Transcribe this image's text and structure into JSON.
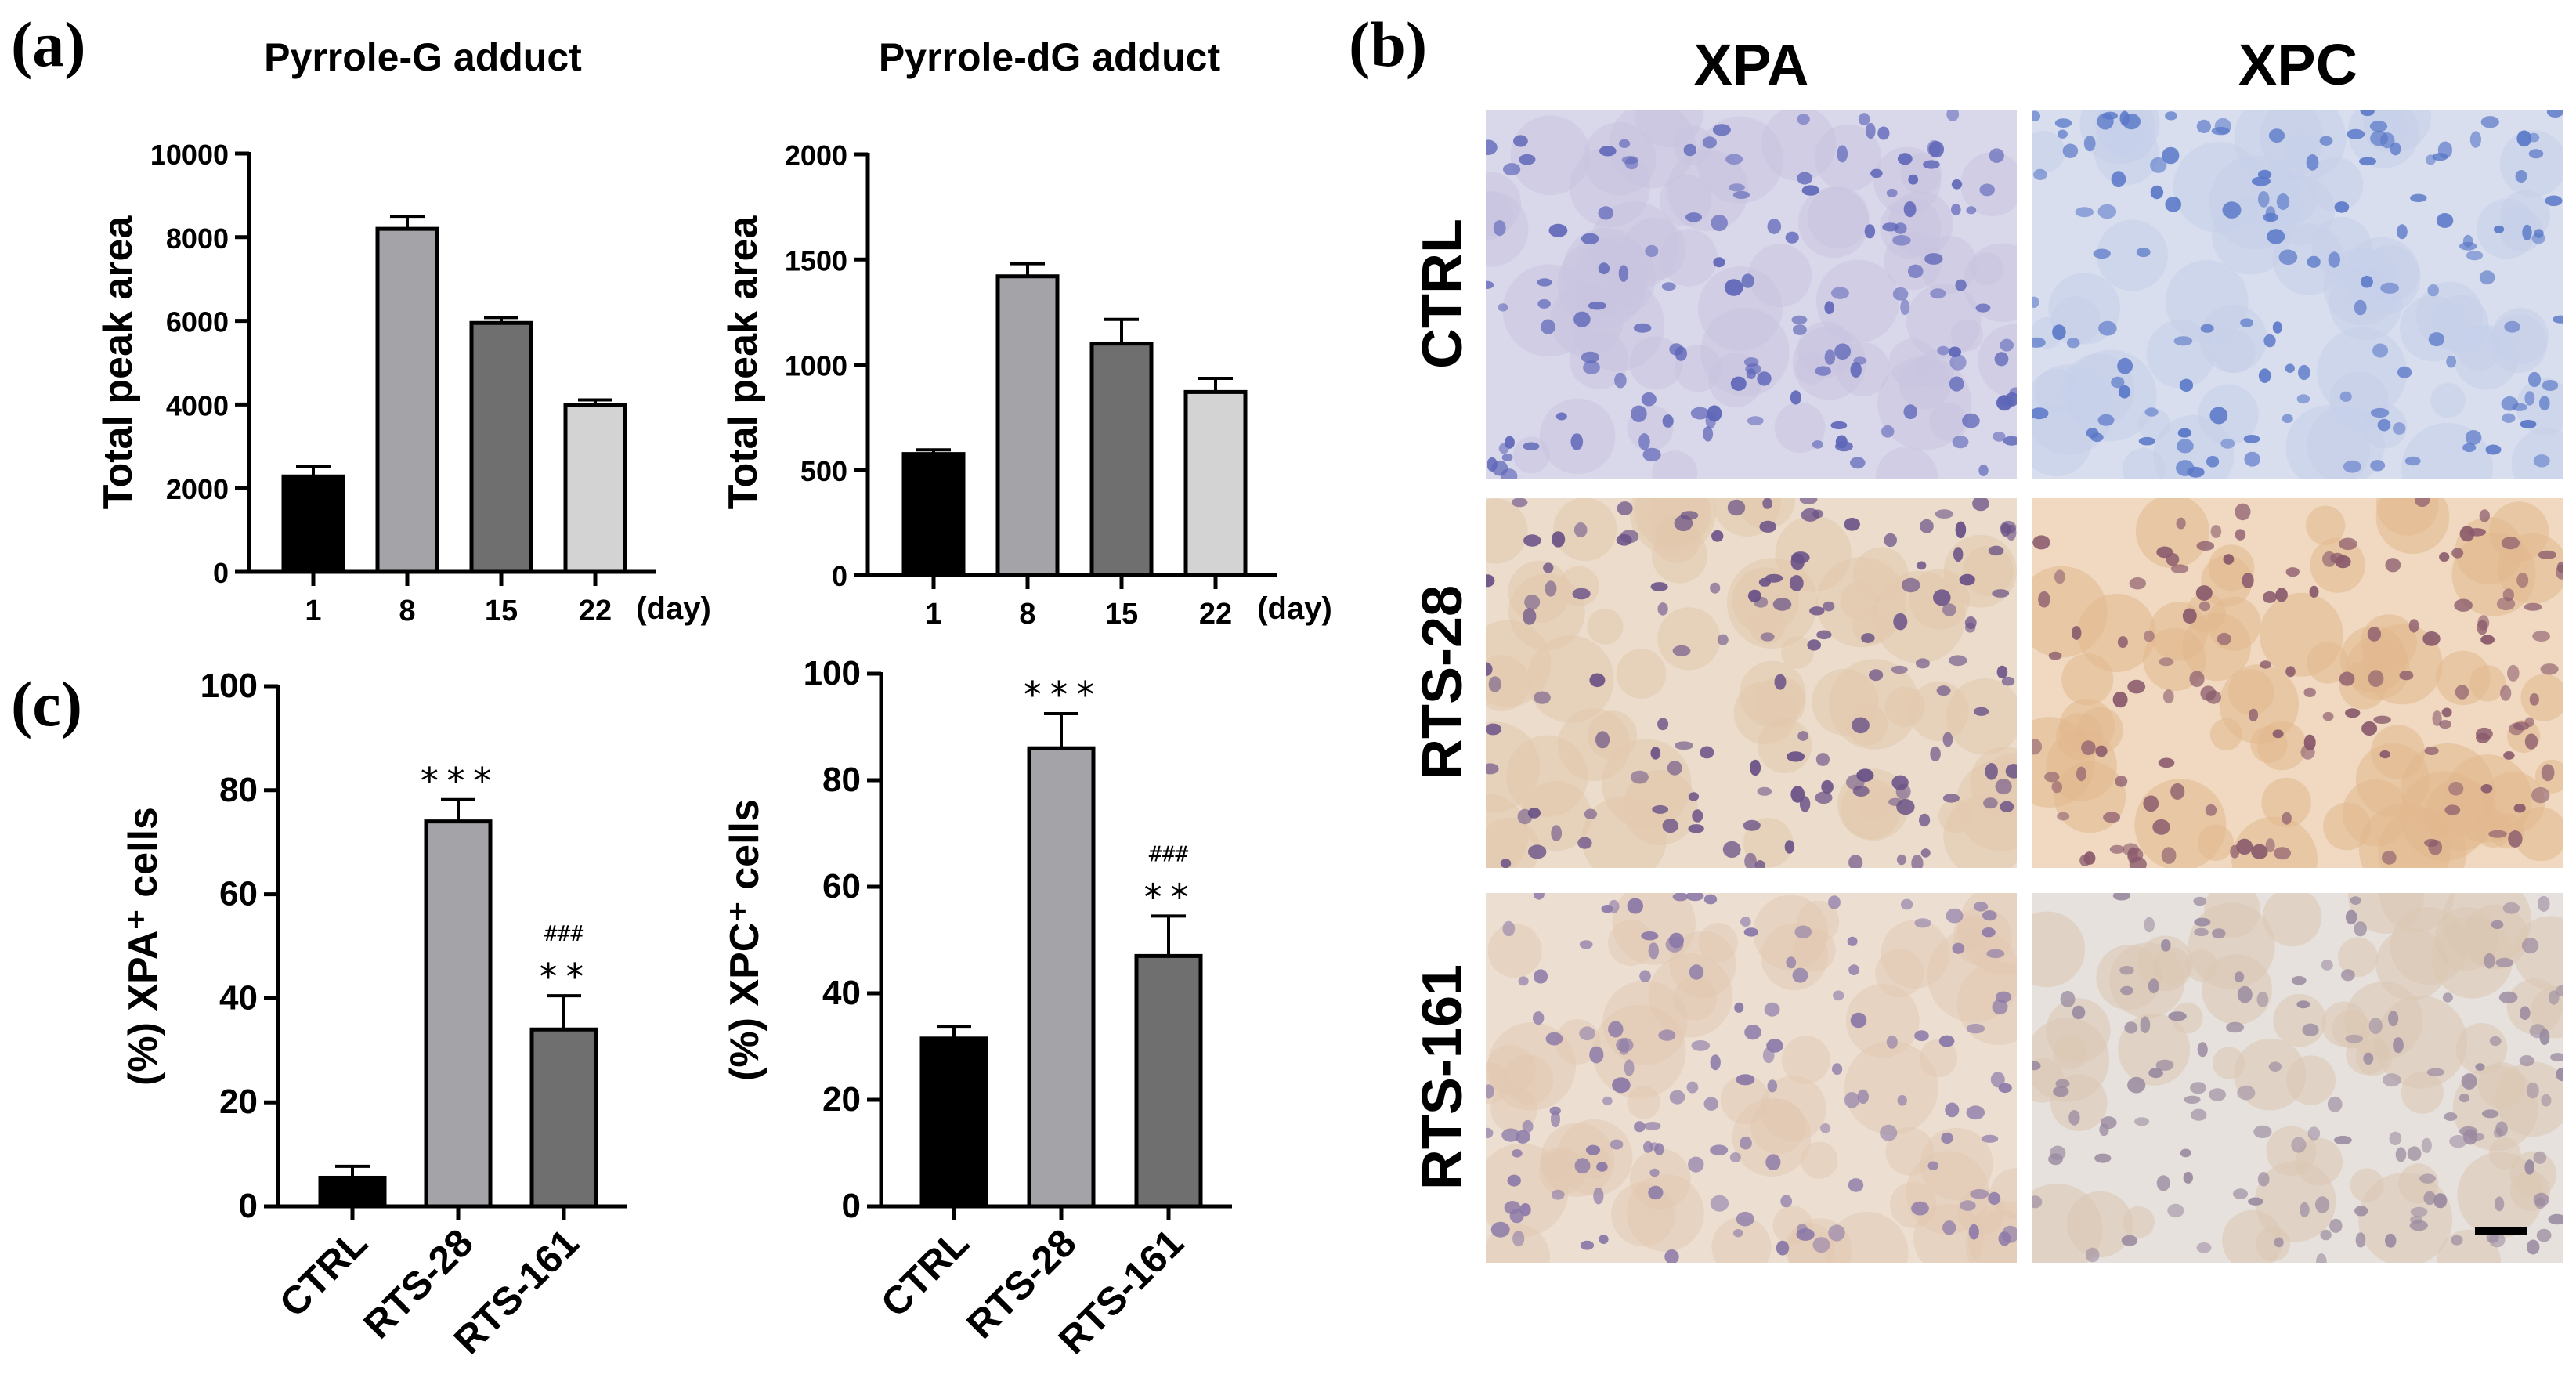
{
  "panels": {
    "a": "(a)",
    "b": "(b)",
    "c": "(c)"
  },
  "chart_data": [
    {
      "id": "pyrrole-g",
      "type": "bar",
      "title": "Pyrrole-G adduct",
      "ylabel": "Total peak area",
      "xlabel": "(day)",
      "categories": [
        "1",
        "8",
        "15",
        "22"
      ],
      "values": [
        2280,
        8200,
        5950,
        3980
      ],
      "errors": [
        230,
        300,
        130,
        130
      ],
      "colors": [
        "#000000",
        "#a3a3a8",
        "#6f6f6f",
        "#d3d3d3"
      ],
      "ylim": [
        0,
        10000
      ],
      "yticks": [
        "0",
        "2000",
        "4000",
        "6000",
        "8000",
        "10000"
      ],
      "tick_values": [
        0,
        2000,
        4000,
        6000,
        8000,
        10000
      ],
      "annotations": []
    },
    {
      "id": "pyrrole-dg",
      "type": "bar",
      "title": "Pyrrole-dG adduct",
      "ylabel": "Total peak area",
      "xlabel": "(day)",
      "categories": [
        "1",
        "8",
        "15",
        "22"
      ],
      "values": [
        575,
        1420,
        1100,
        870
      ],
      "errors": [
        20,
        60,
        115,
        65
      ],
      "colors": [
        "#000000",
        "#a3a3a8",
        "#6f6f6f",
        "#d3d3d3"
      ],
      "ylim": [
        0,
        2000
      ],
      "yticks": [
        "0",
        "500",
        "1000",
        "1500",
        "2000"
      ],
      "tick_values": [
        0,
        500,
        1000,
        1500,
        2000
      ],
      "annotations": []
    },
    {
      "id": "xpa-cells",
      "type": "bar",
      "title": "",
      "ylabel": "(%) XPA⁺ cells",
      "xlabel": "",
      "categories": [
        "CTRL",
        "RTS-28",
        "RTS-161"
      ],
      "values": [
        5.5,
        74,
        34
      ],
      "errors": [
        2.2,
        4.2,
        6.5
      ],
      "colors": [
        "#000000",
        "#a3a3a8",
        "#6f6f6f"
      ],
      "ylim": [
        0,
        100
      ],
      "yticks": [
        "0",
        "20",
        "40",
        "60",
        "80",
        "100"
      ],
      "tick_values": [
        0,
        20,
        40,
        60,
        80,
        100
      ],
      "annotations": [
        {
          "category": "RTS-28",
          "lines": [
            "***"
          ]
        },
        {
          "category": "RTS-161",
          "lines": [
            "###",
            "**"
          ]
        }
      ]
    },
    {
      "id": "xpc-cells",
      "type": "bar",
      "title": "",
      "ylabel": "(%) XPC⁺ cells",
      "xlabel": "",
      "categories": [
        "CTRL",
        "RTS-28",
        "RTS-161"
      ],
      "values": [
        31.5,
        86,
        47
      ],
      "errors": [
        2.3,
        6.5,
        7.5
      ],
      "colors": [
        "#000000",
        "#a3a3a8",
        "#6f6f6f"
      ],
      "ylim": [
        0,
        100
      ],
      "yticks": [
        "0",
        "20",
        "40",
        "60",
        "80",
        "100"
      ],
      "tick_values": [
        0,
        20,
        40,
        60,
        80,
        100
      ],
      "annotations": [
        {
          "category": "RTS-28",
          "lines": [
            "***"
          ]
        },
        {
          "category": "RTS-161",
          "lines": [
            "###",
            "**"
          ]
        }
      ]
    }
  ],
  "micrographs": {
    "columns": [
      "XPA",
      "XPC"
    ],
    "rows": [
      "CTRL",
      "RTS-28",
      "RTS-161"
    ],
    "tiles": [
      {
        "row": "CTRL",
        "col": "XPA",
        "background": "#d9d7ea",
        "nuclei": "#5e66b8",
        "stain": "#c8c4e0"
      },
      {
        "row": "CTRL",
        "col": "XPC",
        "background": "#d8deee",
        "nuclei": "#5a78c8",
        "stain": "#c6d0ea"
      },
      {
        "row": "RTS-28",
        "col": "XPA",
        "background": "#ecdccc",
        "nuclei": "#6a5287",
        "stain": "#e2c8ad"
      },
      {
        "row": "RTS-28",
        "col": "XPC",
        "background": "#f0d9c0",
        "nuclei": "#8a5a6c",
        "stain": "#e2b88e"
      },
      {
        "row": "RTS-161",
        "col": "XPA",
        "background": "#ecdfd2",
        "nuclei": "#8a78a8",
        "stain": "#e2c9b3"
      },
      {
        "row": "RTS-161",
        "col": "XPC",
        "background": "#e6e1dc",
        "nuclei": "#9a8aa0",
        "stain": "#dbc6b2"
      }
    ]
  }
}
